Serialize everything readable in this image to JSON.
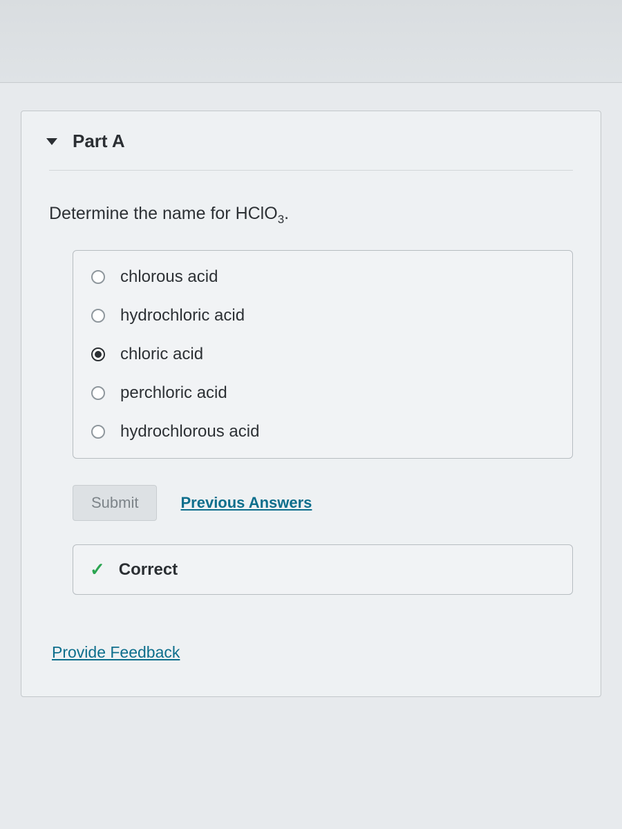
{
  "part": {
    "title": "Part A",
    "prompt_prefix": "Determine the name for ",
    "formula_base": "HClO",
    "formula_sub": "3",
    "prompt_suffix": "."
  },
  "options": [
    {
      "label": "chlorous acid",
      "selected": false
    },
    {
      "label": "hydrochloric acid",
      "selected": false
    },
    {
      "label": "chloric acid",
      "selected": true
    },
    {
      "label": "perchloric acid",
      "selected": false
    },
    {
      "label": "hydrochlorous acid",
      "selected": false
    }
  ],
  "actions": {
    "submit_label": "Submit",
    "submit_enabled": false,
    "previous_answers_label": "Previous Answers"
  },
  "feedback": {
    "status_label": "Correct",
    "status_correct": true
  },
  "footer": {
    "provide_feedback_label": "Provide Feedback"
  },
  "colors": {
    "background": "#e7eaed",
    "panel": "#eef1f3",
    "border": "#b6bcc0",
    "text": "#2b2f33",
    "link": "#0d6e8c",
    "correct": "#2ba551",
    "disabled_text": "#7d8489"
  }
}
